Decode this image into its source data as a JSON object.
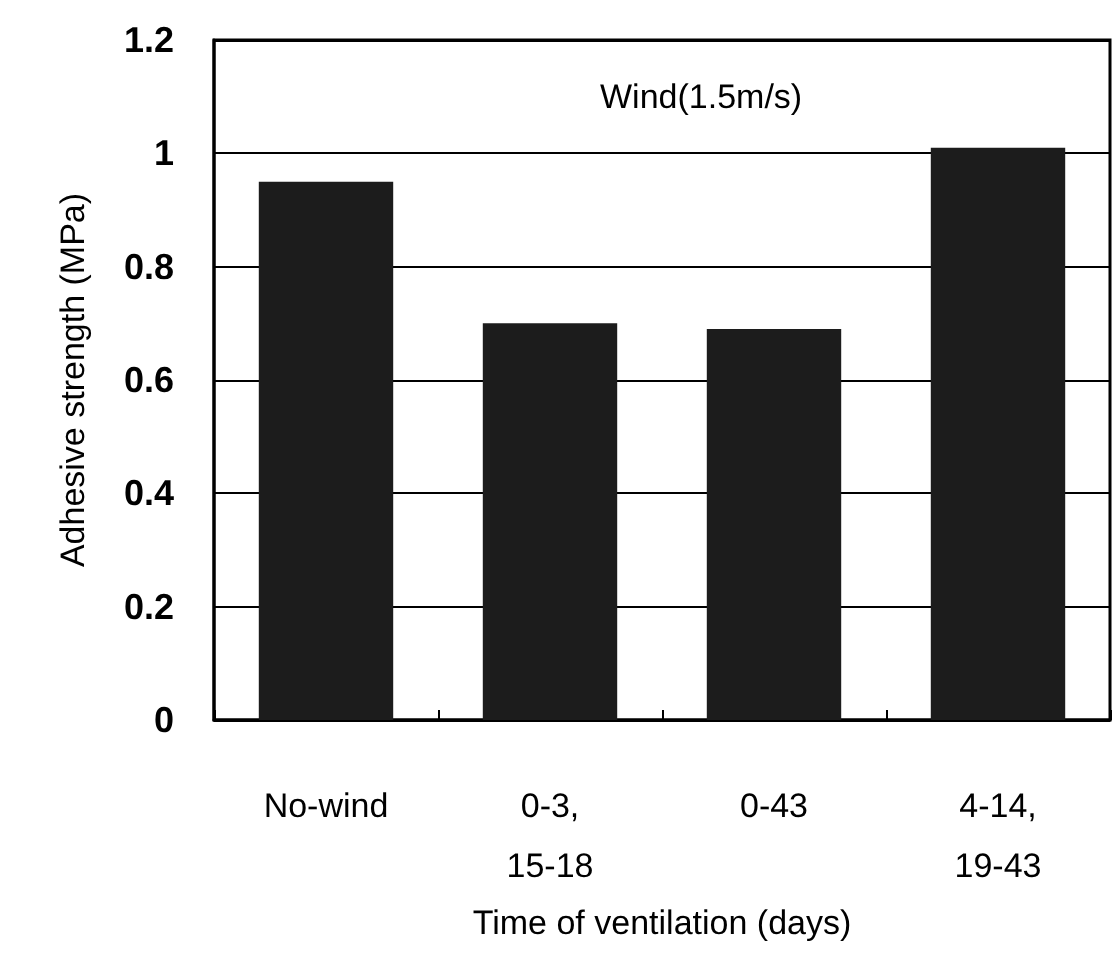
{
  "chart_data": {
    "type": "bar",
    "xlabel": "Time of ventilation (days)",
    "ylabel": "Adhesive strength (MPa)",
    "categories": [
      "No-wind",
      "0-3,\n15-18",
      "0-43",
      "4-14,\n19-43"
    ],
    "values": [
      0.95,
      0.7,
      0.69,
      1.01
    ],
    "color": "#1c1c1c",
    "ylim": [
      0,
      1.2
    ],
    "yticks": [
      0,
      0.2,
      0.4,
      0.6,
      0.8,
      1,
      1.2
    ],
    "grid": "y",
    "annotations": [
      "Wind(1.5m/s)"
    ]
  }
}
